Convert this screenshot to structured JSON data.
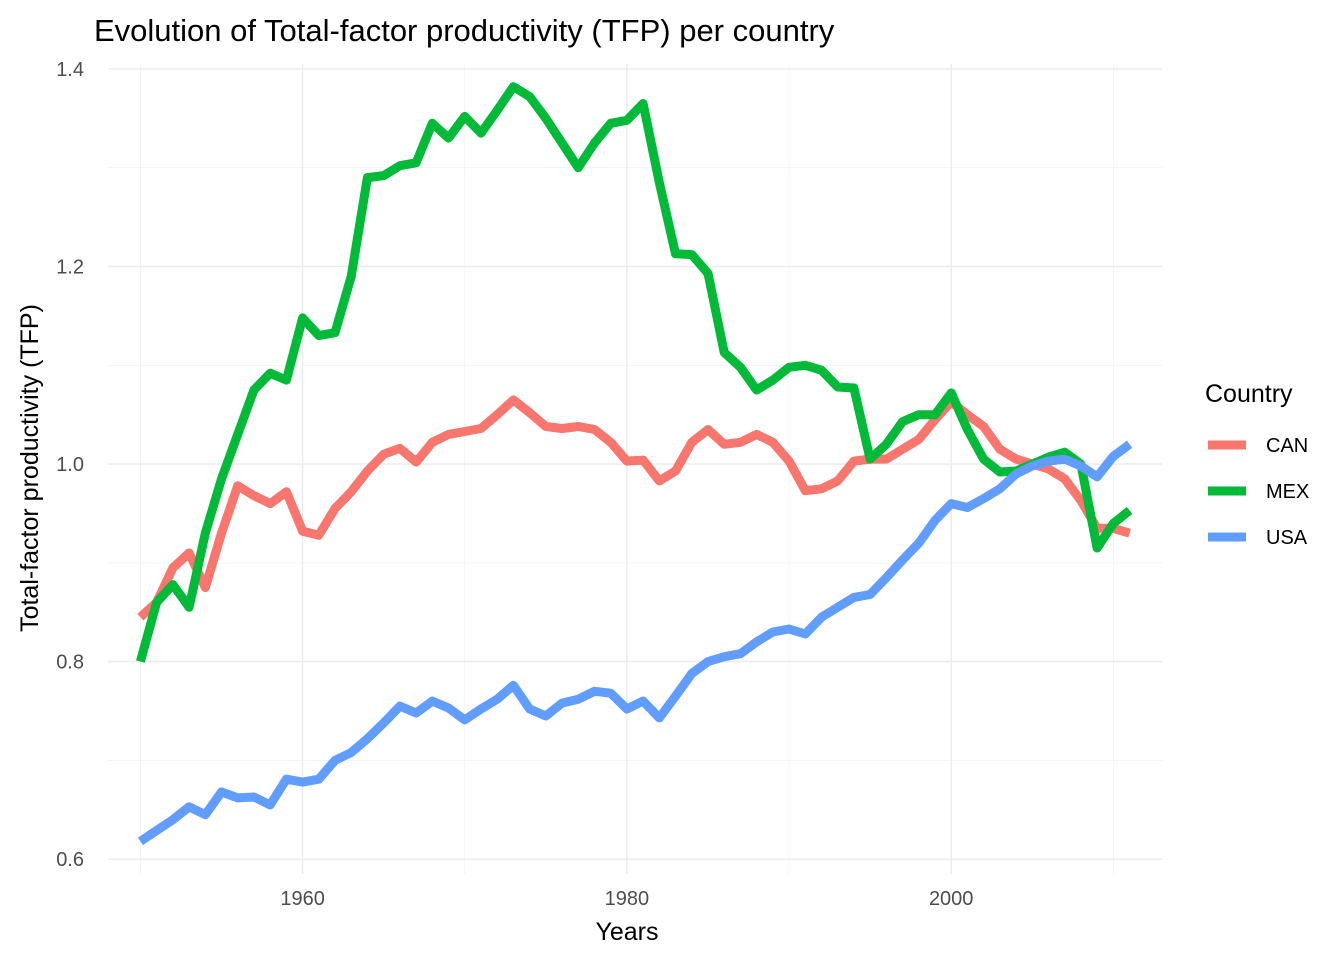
{
  "chart_data": {
    "type": "line",
    "title": "Evolution of Total-factor productivity (TFP) per country",
    "xlabel": "Years",
    "ylabel": "Total-factor productivity (TFP)",
    "xlim": [
      1948,
      2013
    ],
    "ylim": [
      0.585,
      1.405
    ],
    "x_ticks": [
      1960,
      1980,
      2000
    ],
    "x_minor": [
      1950,
      1970,
      1990,
      2010
    ],
    "y_ticks": [
      0.6,
      0.8,
      1.0,
      1.2,
      1.4
    ],
    "y_tick_labels": [
      "0.6",
      "0.8",
      "1.0",
      "1.2",
      "1.4"
    ],
    "y_minor": [
      0.7,
      0.9,
      1.1,
      1.3
    ],
    "grid": true,
    "legend": {
      "title": "Country",
      "position": "right"
    },
    "x": [
      1950,
      1951,
      1952,
      1953,
      1954,
      1955,
      1956,
      1957,
      1958,
      1959,
      1960,
      1961,
      1962,
      1963,
      1964,
      1965,
      1966,
      1967,
      1968,
      1969,
      1970,
      1971,
      1972,
      1973,
      1974,
      1975,
      1976,
      1977,
      1978,
      1979,
      1980,
      1981,
      1982,
      1983,
      1984,
      1985,
      1986,
      1987,
      1988,
      1989,
      1990,
      1991,
      1992,
      1993,
      1994,
      1995,
      1996,
      1997,
      1998,
      1999,
      2000,
      2001,
      2002,
      2003,
      2004,
      2005,
      2006,
      2007,
      2008,
      2009,
      2010,
      2011
    ],
    "series": [
      {
        "name": "CAN",
        "color": "#F8766D",
        "values": [
          0.845,
          0.86,
          0.895,
          0.91,
          0.875,
          0.93,
          0.978,
          0.968,
          0.96,
          0.972,
          0.932,
          0.928,
          0.955,
          0.972,
          0.993,
          1.01,
          1.016,
          1.002,
          1.022,
          1.03,
          1.033,
          1.036,
          1.05,
          1.065,
          1.052,
          1.038,
          1.036,
          1.038,
          1.035,
          1.022,
          1.003,
          1.004,
          0.983,
          0.993,
          1.022,
          1.035,
          1.02,
          1.022,
          1.03,
          1.022,
          1.003,
          0.973,
          0.975,
          0.983,
          1.003,
          1.005,
          1.005,
          1.015,
          1.025,
          1.045,
          1.063,
          1.05,
          1.038,
          1.015,
          1.005,
          1.0,
          0.995,
          0.985,
          0.963,
          0.935,
          0.935,
          0.93
        ]
      },
      {
        "name": "MEX",
        "color": "#00BA38",
        "values": [
          0.8,
          0.86,
          0.878,
          0.855,
          0.93,
          0.985,
          1.03,
          1.075,
          1.092,
          1.085,
          1.148,
          1.13,
          1.133,
          1.19,
          1.29,
          1.292,
          1.302,
          1.305,
          1.345,
          1.33,
          1.352,
          1.335,
          1.358,
          1.382,
          1.372,
          1.35,
          1.325,
          1.3,
          1.325,
          1.345,
          1.348,
          1.365,
          1.285,
          1.213,
          1.212,
          1.193,
          1.113,
          1.098,
          1.075,
          1.085,
          1.098,
          1.1,
          1.095,
          1.078,
          1.077,
          1.005,
          1.02,
          1.043,
          1.05,
          1.05,
          1.072,
          1.035,
          1.005,
          0.992,
          0.993,
          1.0,
          1.007,
          1.012,
          1.0,
          0.915,
          0.94,
          0.953
        ]
      },
      {
        "name": "USA",
        "color": "#619CFF",
        "values": [
          0.618,
          0.629,
          0.64,
          0.653,
          0.645,
          0.668,
          0.662,
          0.663,
          0.655,
          0.681,
          0.678,
          0.681,
          0.7,
          0.708,
          0.722,
          0.738,
          0.755,
          0.748,
          0.76,
          0.753,
          0.741,
          0.752,
          0.762,
          0.776,
          0.752,
          0.745,
          0.758,
          0.762,
          0.77,
          0.768,
          0.752,
          0.76,
          0.743,
          0.765,
          0.788,
          0.8,
          0.805,
          0.808,
          0.82,
          0.83,
          0.833,
          0.828,
          0.845,
          0.855,
          0.865,
          0.868,
          0.885,
          0.903,
          0.92,
          0.943,
          0.96,
          0.956,
          0.965,
          0.975,
          0.99,
          0.998,
          1.003,
          1.005,
          0.998,
          0.987,
          1.008,
          1.02
        ]
      }
    ]
  }
}
